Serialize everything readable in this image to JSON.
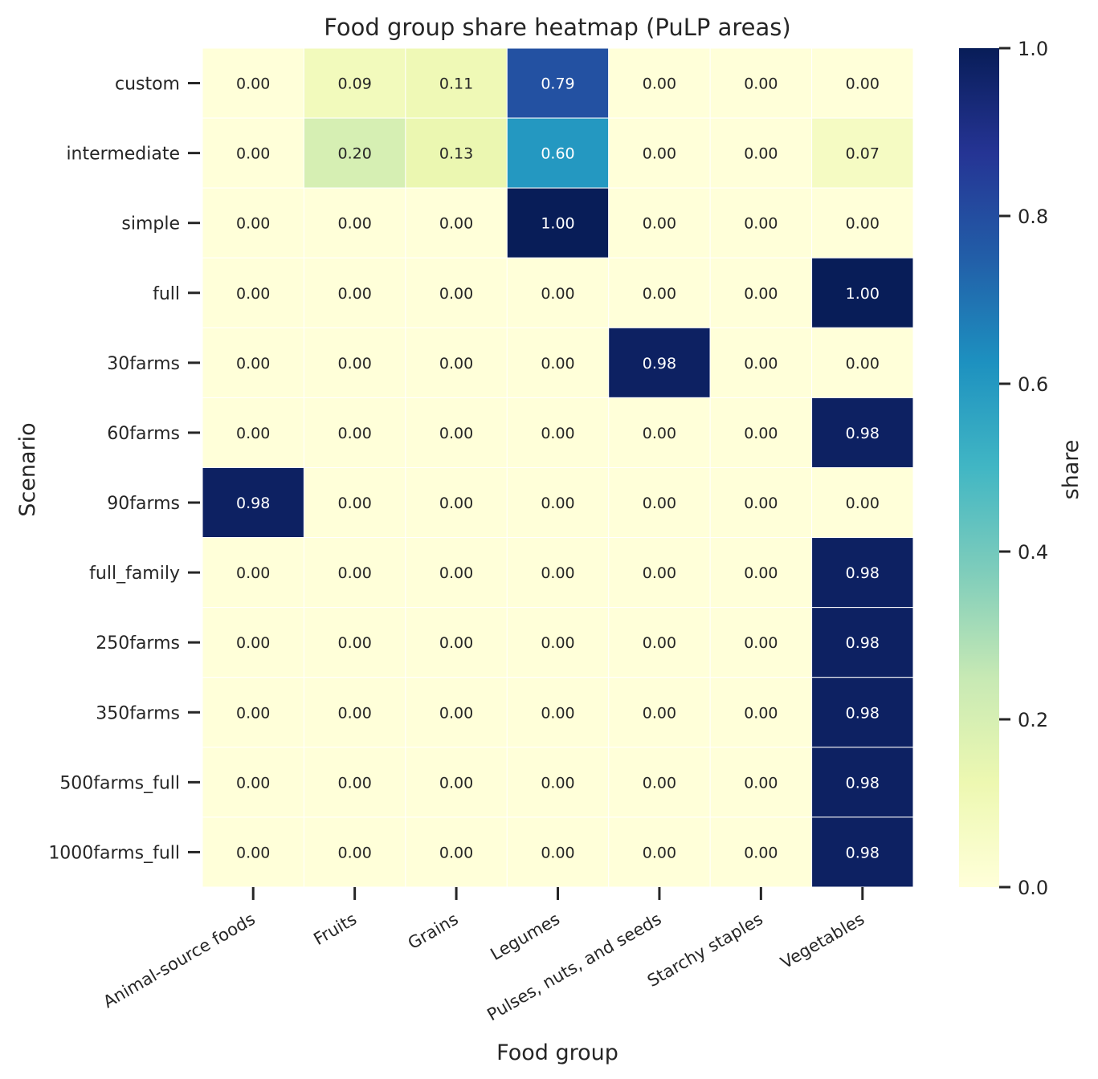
{
  "chart_data": {
    "type": "heatmap",
    "title": "Food group share heatmap (PuLP areas)",
    "xlabel": "Food group",
    "ylabel": "Scenario",
    "colorbar_label": "share",
    "colorscale": "YlGnBu",
    "vmin": 0.0,
    "vmax": 1.0,
    "colorbar_ticks": [
      "0.0",
      "0.2",
      "0.4",
      "0.6",
      "0.8",
      "1.0"
    ],
    "columns": [
      "Animal-source foods",
      "Fruits",
      "Grains",
      "Legumes",
      "Pulses, nuts, and seeds",
      "Starchy staples",
      "Vegetables"
    ],
    "rows": [
      "custom",
      "intermediate",
      "simple",
      "full",
      "30farms",
      "60farms",
      "90farms",
      "full_family",
      "250farms",
      "350farms",
      "500farms_full",
      "1000farms_full"
    ],
    "values": [
      [
        0.0,
        0.09,
        0.11,
        0.79,
        0.0,
        0.0,
        0.0
      ],
      [
        0.0,
        0.2,
        0.13,
        0.6,
        0.0,
        0.0,
        0.07
      ],
      [
        0.0,
        0.0,
        0.0,
        1.0,
        0.0,
        0.0,
        0.0
      ],
      [
        0.0,
        0.0,
        0.0,
        0.0,
        0.0,
        0.0,
        1.0
      ],
      [
        0.0,
        0.0,
        0.0,
        0.0,
        0.98,
        0.0,
        0.0
      ],
      [
        0.0,
        0.0,
        0.0,
        0.0,
        0.0,
        0.0,
        0.98
      ],
      [
        0.98,
        0.0,
        0.0,
        0.0,
        0.0,
        0.0,
        0.0
      ],
      [
        0.0,
        0.0,
        0.0,
        0.0,
        0.0,
        0.0,
        0.98
      ],
      [
        0.0,
        0.0,
        0.0,
        0.0,
        0.0,
        0.0,
        0.98
      ],
      [
        0.0,
        0.0,
        0.0,
        0.0,
        0.0,
        0.0,
        0.98
      ],
      [
        0.0,
        0.0,
        0.0,
        0.0,
        0.0,
        0.0,
        0.98
      ],
      [
        0.0,
        0.0,
        0.0,
        0.0,
        0.0,
        0.0,
        0.98
      ]
    ]
  }
}
